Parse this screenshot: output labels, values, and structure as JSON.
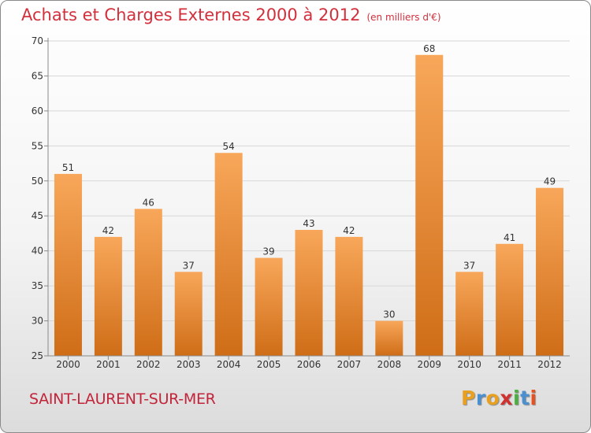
{
  "title": "Achats et Charges Externes 2000 à 2012",
  "subtitle": "(en milliers d'€)",
  "town": "SAINT-LAURENT-SUR-MER",
  "logo": {
    "letters": [
      "P",
      "r",
      "o",
      "x",
      "i",
      "t",
      "i"
    ],
    "colors": [
      "#e8a020",
      "#4a90d0",
      "#e8a020",
      "#d03030",
      "#4ab040",
      "#4a90d0",
      "#e85020"
    ]
  },
  "colors": {
    "bar_top": "#f8a75a",
    "bar_bottom": "#cf6d17",
    "title": "#d2303c",
    "town": "#c2243a"
  },
  "chart_data": {
    "type": "bar",
    "categories": [
      "2000",
      "2001",
      "2002",
      "2003",
      "2004",
      "2005",
      "2006",
      "2007",
      "2008",
      "2009",
      "2010",
      "2011",
      "2012"
    ],
    "values": [
      51,
      42,
      46,
      37,
      54,
      39,
      43,
      42,
      30,
      68,
      37,
      41,
      49
    ],
    "value_labels": [
      "51",
      "42",
      "46",
      "37",
      "54",
      "39",
      "43",
      "42",
      "30",
      "68",
      "37",
      "41",
      "49"
    ],
    "ylim": [
      25,
      70
    ],
    "yticks": [
      "25",
      "30",
      "35",
      "40",
      "45",
      "50",
      "55",
      "60",
      "65",
      "70"
    ],
    "ytick_values": [
      25,
      30,
      35,
      40,
      45,
      50,
      55,
      60,
      65,
      70
    ],
    "grid": true,
    "xlabel": "",
    "ylabel": ""
  }
}
